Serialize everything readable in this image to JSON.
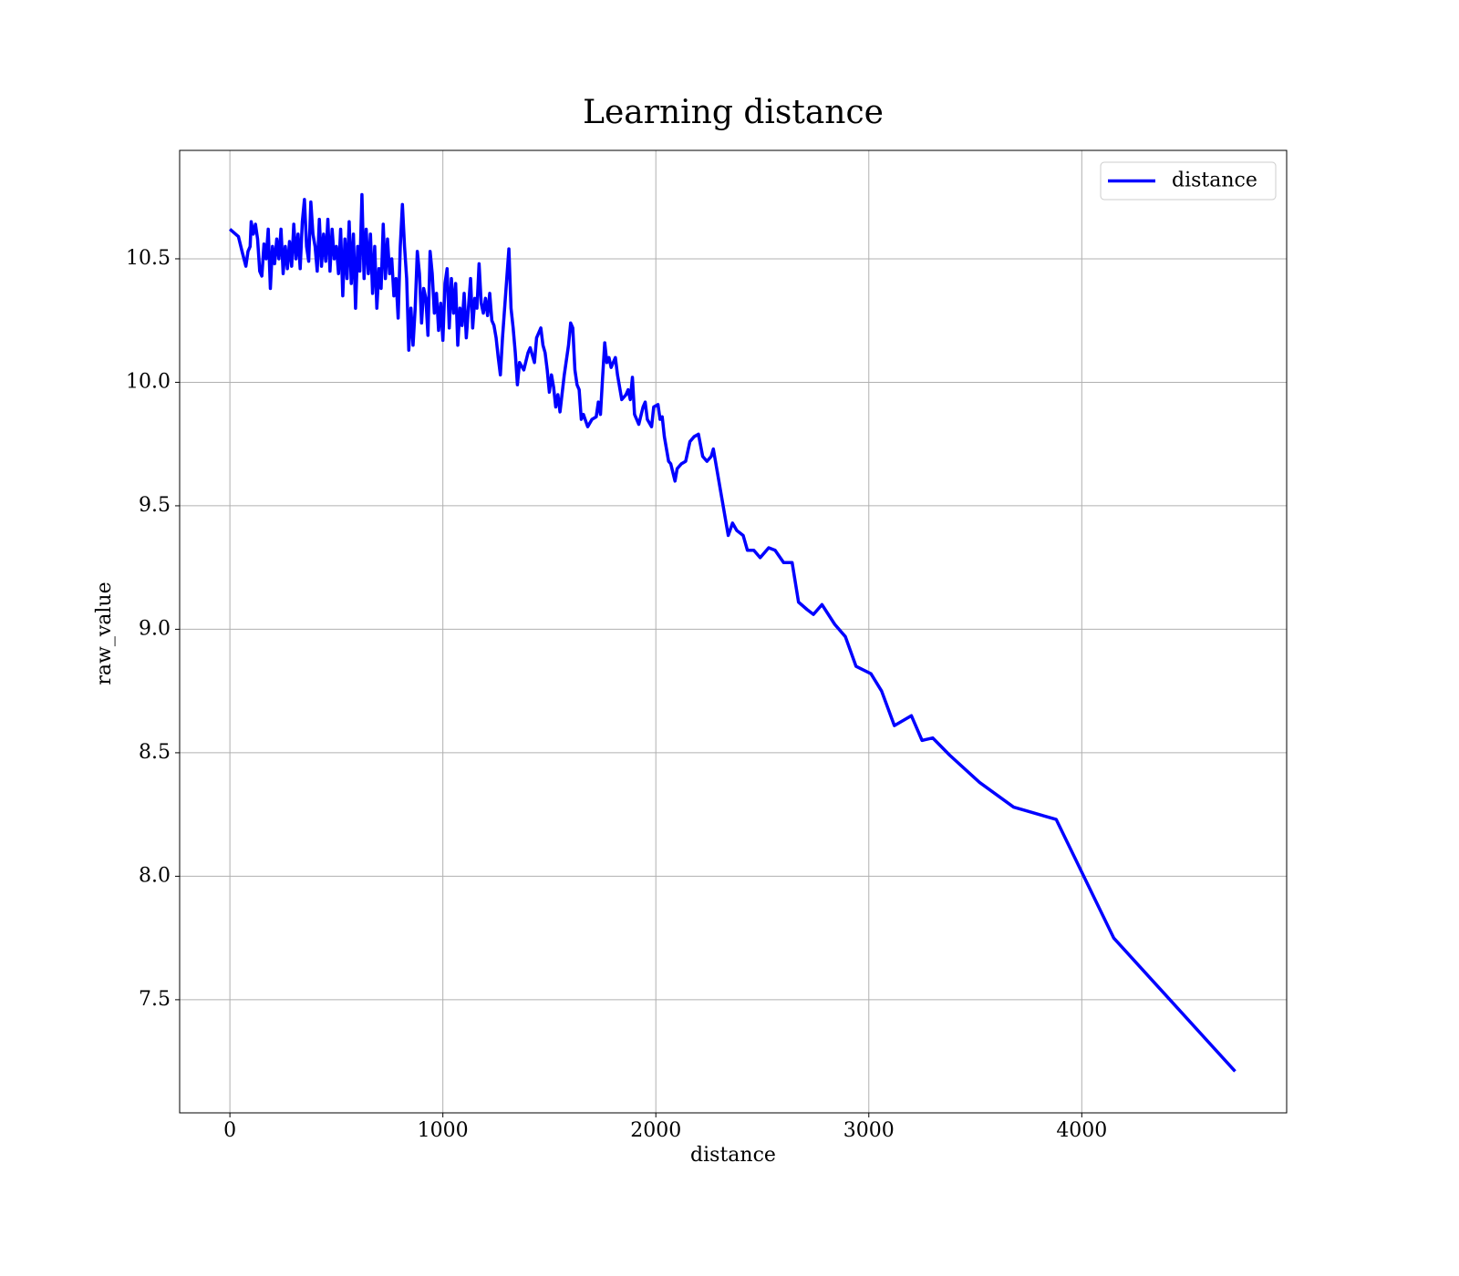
{
  "chart_data": {
    "type": "line",
    "title": "Learning distance",
    "x_label": "distance",
    "y_label": "raw_value",
    "x": [
      0,
      40,
      60,
      75,
      85,
      95,
      100,
      110,
      120,
      130,
      140,
      150,
      160,
      170,
      180,
      190,
      200,
      210,
      220,
      230,
      240,
      250,
      260,
      270,
      280,
      290,
      300,
      310,
      320,
      330,
      340,
      350,
      360,
      370,
      380,
      390,
      400,
      410,
      420,
      430,
      440,
      450,
      460,
      470,
      480,
      490,
      500,
      510,
      520,
      530,
      540,
      550,
      560,
      570,
      580,
      590,
      600,
      610,
      620,
      630,
      640,
      650,
      660,
      670,
      680,
      690,
      700,
      710,
      720,
      730,
      740,
      750,
      760,
      770,
      780,
      790,
      800,
      810,
      820,
      830,
      840,
      850,
      860,
      870,
      880,
      890,
      900,
      910,
      920,
      930,
      940,
      950,
      960,
      970,
      980,
      990,
      1000,
      1010,
      1020,
      1030,
      1040,
      1050,
      1060,
      1070,
      1080,
      1090,
      1100,
      1110,
      1120,
      1130,
      1140,
      1150,
      1160,
      1170,
      1180,
      1190,
      1200,
      1210,
      1220,
      1230,
      1240,
      1250,
      1260,
      1270,
      1280,
      1300,
      1310,
      1320,
      1330,
      1340,
      1350,
      1360,
      1380,
      1400,
      1410,
      1430,
      1440,
      1460,
      1470,
      1480,
      1490,
      1500,
      1510,
      1520,
      1530,
      1540,
      1550,
      1570,
      1590,
      1600,
      1610,
      1620,
      1630,
      1640,
      1650,
      1660,
      1680,
      1700,
      1720,
      1730,
      1740,
      1750,
      1760,
      1770,
      1780,
      1790,
      1810,
      1820,
      1840,
      1860,
      1870,
      1880,
      1890,
      1900,
      1920,
      1940,
      1950,
      1960,
      1980,
      1990,
      2010,
      2020,
      2030,
      2040,
      2060,
      2070,
      2090,
      2100,
      2120,
      2140,
      2160,
      2180,
      2200,
      2220,
      2240,
      2260,
      2270,
      2290,
      2310,
      2340,
      2360,
      2380,
      2410,
      2430,
      2460,
      2490,
      2530,
      2560,
      2600,
      2640,
      2670,
      2710,
      2740,
      2780,
      2840,
      2890,
      2940,
      3010,
      3060,
      3120,
      3200,
      3250,
      3300,
      3380,
      3520,
      3680,
      3880,
      4150,
      4720
    ],
    "series": [
      {
        "name": "distance",
        "color": "#0000ff",
        "values": [
          10.62,
          10.59,
          10.52,
          10.47,
          10.53,
          10.55,
          10.65,
          10.6,
          10.64,
          10.58,
          10.45,
          10.43,
          10.56,
          10.5,
          10.62,
          10.38,
          10.55,
          10.48,
          10.58,
          10.5,
          10.62,
          10.44,
          10.55,
          10.46,
          10.57,
          10.47,
          10.64,
          10.5,
          10.6,
          10.46,
          10.65,
          10.74,
          10.55,
          10.49,
          10.73,
          10.6,
          10.55,
          10.45,
          10.66,
          10.47,
          10.6,
          10.49,
          10.66,
          10.45,
          10.62,
          10.5,
          10.55,
          10.44,
          10.62,
          10.35,
          10.58,
          10.42,
          10.65,
          10.4,
          10.6,
          10.3,
          10.55,
          10.45,
          10.76,
          10.42,
          10.62,
          10.44,
          10.6,
          10.36,
          10.55,
          10.3,
          10.46,
          10.38,
          10.64,
          10.42,
          10.58,
          10.44,
          10.5,
          10.35,
          10.42,
          10.26,
          10.55,
          10.72,
          10.55,
          10.42,
          10.13,
          10.3,
          10.15,
          10.3,
          10.53,
          10.44,
          10.24,
          10.38,
          10.34,
          10.19,
          10.53,
          10.44,
          10.28,
          10.36,
          10.21,
          10.32,
          10.17,
          10.4,
          10.46,
          10.22,
          10.42,
          10.28,
          10.4,
          10.15,
          10.3,
          10.23,
          10.36,
          10.18,
          10.3,
          10.42,
          10.22,
          10.34,
          10.3,
          10.48,
          10.32,
          10.28,
          10.34,
          10.27,
          10.36,
          10.25,
          10.23,
          10.18,
          10.1,
          10.03,
          10.18,
          10.42,
          10.54,
          10.3,
          10.22,
          10.12,
          9.99,
          10.08,
          10.05,
          10.12,
          10.14,
          10.08,
          10.18,
          10.22,
          10.15,
          10.12,
          10.05,
          9.96,
          10.03,
          9.98,
          9.9,
          9.95,
          9.88,
          10.03,
          10.15,
          10.24,
          10.22,
          10.05,
          9.99,
          9.97,
          9.85,
          9.87,
          9.82,
          9.85,
          9.86,
          9.92,
          9.87,
          10.02,
          10.16,
          10.08,
          10.1,
          10.06,
          10.1,
          10.03,
          9.93,
          9.95,
          9.97,
          9.93,
          10.02,
          9.87,
          9.83,
          9.9,
          9.92,
          9.85,
          9.82,
          9.9,
          9.91,
          9.85,
          9.86,
          9.78,
          9.68,
          9.67,
          9.6,
          9.65,
          9.67,
          9.68,
          9.76,
          9.78,
          9.79,
          9.7,
          9.68,
          9.7,
          9.73,
          9.63,
          9.53,
          9.38,
          9.43,
          9.4,
          9.38,
          9.32,
          9.32,
          9.29,
          9.33,
          9.32,
          9.27,
          9.27,
          9.11,
          9.08,
          9.06,
          9.1,
          9.02,
          8.97,
          8.85,
          8.82,
          8.75,
          8.61,
          8.65,
          8.55,
          8.56,
          8.49,
          8.38,
          8.28,
          8.23,
          7.75,
          7.21
        ]
      }
    ],
    "xlim": [
      -236,
      4962
    ],
    "ylim": [
      7.042,
      10.939
    ],
    "xticks": [
      0,
      1000,
      2000,
      3000,
      4000
    ],
    "yticks": [
      7.5,
      {
        "value": 8,
        "label": "8.0"
      },
      8.5,
      {
        "value": 9,
        "label": "9.0"
      },
      9.5,
      {
        "value": 10,
        "label": "10.0"
      },
      10.5
    ],
    "grid": true,
    "legend": "upper right"
  }
}
